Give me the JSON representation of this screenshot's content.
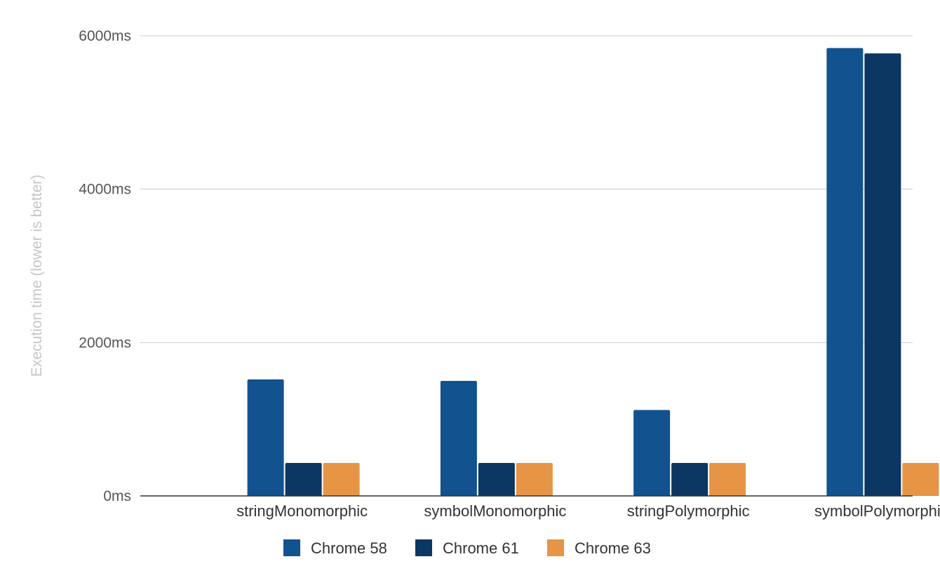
{
  "chart_data": {
    "type": "bar",
    "title": "",
    "xlabel": "",
    "ylabel": "Execution time (lower is better)",
    "y_unit": "ms",
    "ylim": [
      0,
      6000
    ],
    "yticks": [
      0,
      2000,
      4000,
      6000
    ],
    "ytick_labels": [
      "0ms",
      "2000ms",
      "4000ms",
      "6000ms"
    ],
    "grid": true,
    "legend_position": "bottom",
    "categories": [
      "stringMonomorphic",
      "symbolMonomorphic",
      "stringPolymorphic",
      "symbolPolymorphic"
    ],
    "series": [
      {
        "name": "Chrome 58",
        "color": "#12528f",
        "values": [
          1520,
          1500,
          1120,
          5840
        ]
      },
      {
        "name": "Chrome 61",
        "color": "#0c3762",
        "values": [
          430,
          430,
          430,
          5770
        ]
      },
      {
        "name": "Chrome 63",
        "color": "#e69445",
        "values": [
          430,
          430,
          430,
          430
        ]
      }
    ]
  }
}
